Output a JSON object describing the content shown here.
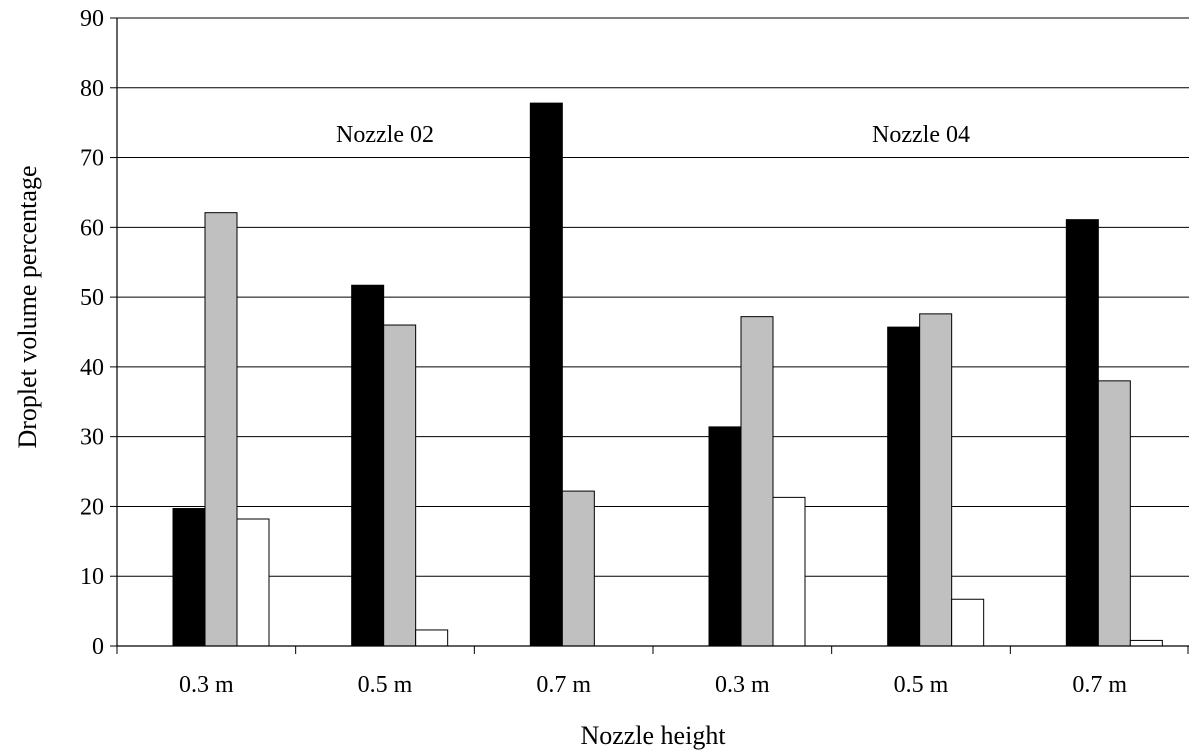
{
  "chart_data": {
    "type": "bar",
    "title": "",
    "xlabel": "Nozzle height",
    "ylabel": "Droplet volume percentage",
    "ylim": [
      0,
      90
    ],
    "yticks": [
      0,
      10,
      20,
      30,
      40,
      50,
      60,
      70,
      80,
      90
    ],
    "grid": true,
    "legend": "none",
    "categories": [
      "0.3 m",
      "0.5 m",
      "0.7 m",
      "0.3 m",
      "0.5 m",
      "0.7 m"
    ],
    "groups": [
      {
        "label": "Nozzle 02",
        "categories": [
          0,
          1,
          2
        ]
      },
      {
        "label": "Nozzle 04",
        "categories": [
          3,
          4,
          5
        ]
      }
    ],
    "series": [
      {
        "color": "#000000",
        "values": [
          19.7,
          51.7,
          77.8,
          31.4,
          45.7,
          61.1
        ]
      },
      {
        "color": "#c0c0c0",
        "values": [
          62.1,
          46.0,
          22.2,
          47.2,
          47.6,
          38.0
        ]
      },
      {
        "color": "#ffffff",
        "values": [
          18.2,
          2.3,
          0,
          21.3,
          6.7,
          0.8
        ]
      }
    ]
  }
}
